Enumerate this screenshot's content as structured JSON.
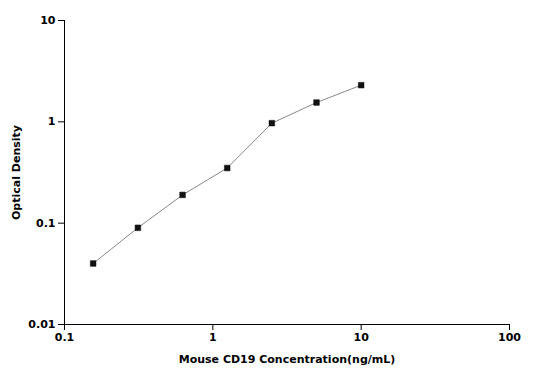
{
  "chart_data": {
    "type": "line",
    "xlabel": "Mouse CD19 Concentration(ng/mL)",
    "ylabel": "Optical Density",
    "x": [
      0.156,
      0.3125,
      0.625,
      1.25,
      2.5,
      5.0,
      10.0
    ],
    "values": [
      0.04,
      0.09,
      0.19,
      0.35,
      0.97,
      1.55,
      2.3
    ],
    "color": "#888888",
    "marker": "square",
    "log": true,
    "xlim": [
      0.1,
      100
    ],
    "ylim": [
      0.01,
      10
    ],
    "xticks": [
      0.1,
      1,
      10,
      100
    ],
    "yticks": [
      0.01,
      0.1,
      1,
      10
    ],
    "grid": false
  }
}
